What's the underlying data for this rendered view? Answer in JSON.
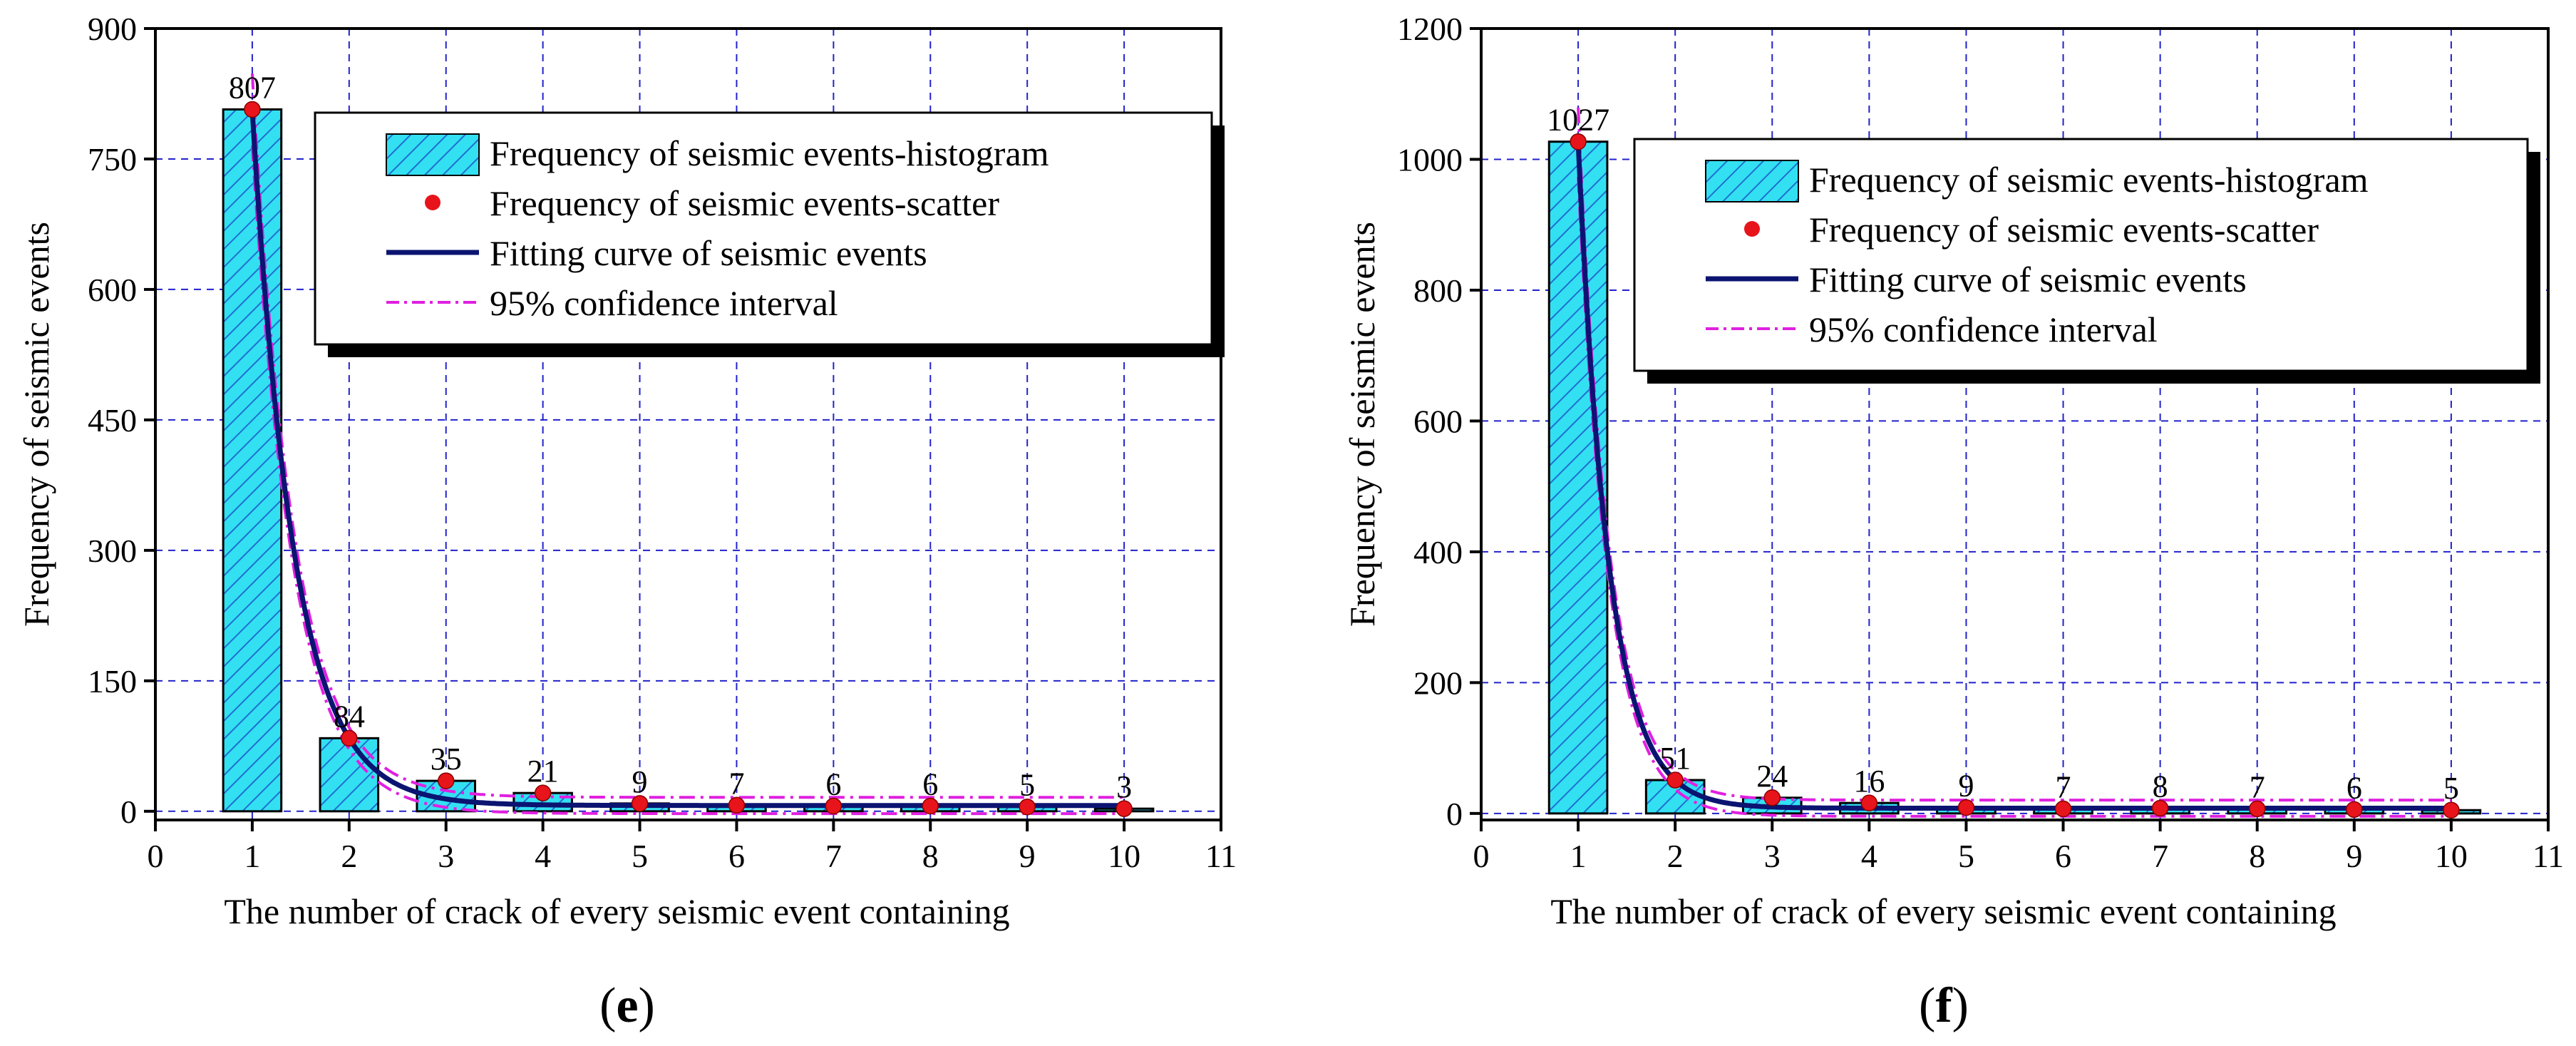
{
  "colors": {
    "bar_fill": "#33E0F2",
    "bar_hatch": "#1F6FD0",
    "scatter": "#E8141B",
    "fit_curve": "#0B1470",
    "confidence": "#E020E0",
    "grid": "#2222CC"
  },
  "legend": {
    "histogram": "Frequency of seismic events-histogram",
    "scatter": "Frequency of seismic events-scatter",
    "fit": "Fitting curve of seismic events",
    "confidence": "95% confidence interval"
  },
  "chart_data": [
    {
      "type": "bar",
      "panel": "(e)",
      "panel_letter": "e",
      "xlabel": "The number of crack of every seismic event containing",
      "ylabel": "Frequency of seismic events",
      "xlim": [
        0,
        11
      ],
      "ylim": [
        -10,
        900
      ],
      "xticks": [
        0,
        1,
        2,
        3,
        4,
        5,
        6,
        7,
        8,
        9,
        10,
        11
      ],
      "yticks": [
        0,
        150,
        300,
        450,
        600,
        750,
        900
      ],
      "grid": true,
      "legend_position": "top-right",
      "categories": [
        1,
        2,
        3,
        4,
        5,
        6,
        7,
        8,
        9,
        10
      ],
      "values": [
        807,
        84,
        35,
        21,
        9,
        7,
        6,
        6,
        5,
        3
      ],
      "labels": [
        "807",
        "84",
        "35",
        "21",
        "9",
        "7",
        "6",
        "6",
        "5",
        "3"
      ]
    },
    {
      "type": "bar",
      "panel": "(f)",
      "panel_letter": "f",
      "xlabel": "The number of crack of every seismic event containing",
      "ylabel": "Frequency of seismic events",
      "xlim": [
        0,
        11
      ],
      "ylim": [
        -10,
        1200
      ],
      "xticks": [
        0,
        1,
        2,
        3,
        4,
        5,
        6,
        7,
        8,
        9,
        10,
        11
      ],
      "yticks": [
        0,
        200,
        400,
        600,
        800,
        1000,
        1200
      ],
      "grid": true,
      "legend_position": "top-right",
      "categories": [
        1,
        2,
        3,
        4,
        5,
        6,
        7,
        8,
        9,
        10
      ],
      "values": [
        1027,
        51,
        24,
        16,
        9,
        7,
        8,
        7,
        6,
        5
      ],
      "labels": [
        "1027",
        "51",
        "24",
        "16",
        "9",
        "7",
        "8",
        "7",
        "6",
        "5"
      ]
    }
  ]
}
